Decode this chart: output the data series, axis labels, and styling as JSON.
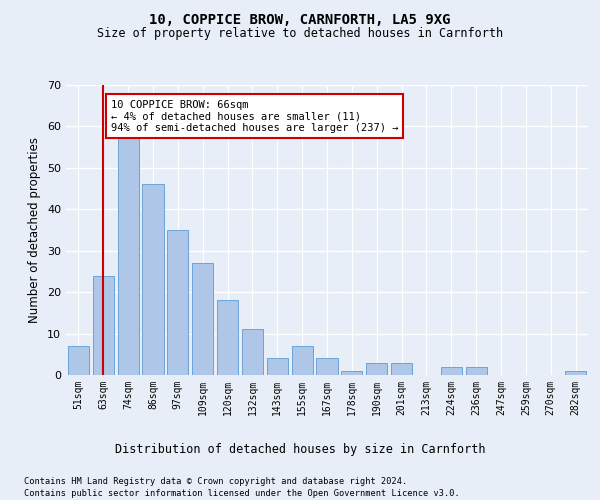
{
  "title1": "10, COPPICE BROW, CARNFORTH, LA5 9XG",
  "title2": "Size of property relative to detached houses in Carnforth",
  "xlabel": "Distribution of detached houses by size in Carnforth",
  "ylabel": "Number of detached properties",
  "categories": [
    "51sqm",
    "63sqm",
    "74sqm",
    "86sqm",
    "97sqm",
    "109sqm",
    "120sqm",
    "132sqm",
    "143sqm",
    "155sqm",
    "167sqm",
    "178sqm",
    "190sqm",
    "201sqm",
    "213sqm",
    "224sqm",
    "236sqm",
    "247sqm",
    "259sqm",
    "270sqm",
    "282sqm"
  ],
  "values": [
    7,
    24,
    58,
    46,
    35,
    27,
    18,
    11,
    4,
    7,
    4,
    1,
    3,
    3,
    0,
    2,
    2,
    0,
    0,
    0,
    1
  ],
  "bar_color": "#aec6e8",
  "bar_edge_color": "#5b9bd5",
  "vline_x": 1,
  "vline_color": "#cc0000",
  "annotation_text": "10 COPPICE BROW: 66sqm\n← 4% of detached houses are smaller (11)\n94% of semi-detached houses are larger (237) →",
  "annotation_box_color": "#ffffff",
  "annotation_box_edge_color": "#cc0000",
  "ylim": [
    0,
    70
  ],
  "yticks": [
    0,
    10,
    20,
    30,
    40,
    50,
    60,
    70
  ],
  "background_color": "#e8eef7",
  "grid_color": "#ffffff",
  "footer1": "Contains HM Land Registry data © Crown copyright and database right 2024.",
  "footer2": "Contains public sector information licensed under the Open Government Licence v3.0."
}
